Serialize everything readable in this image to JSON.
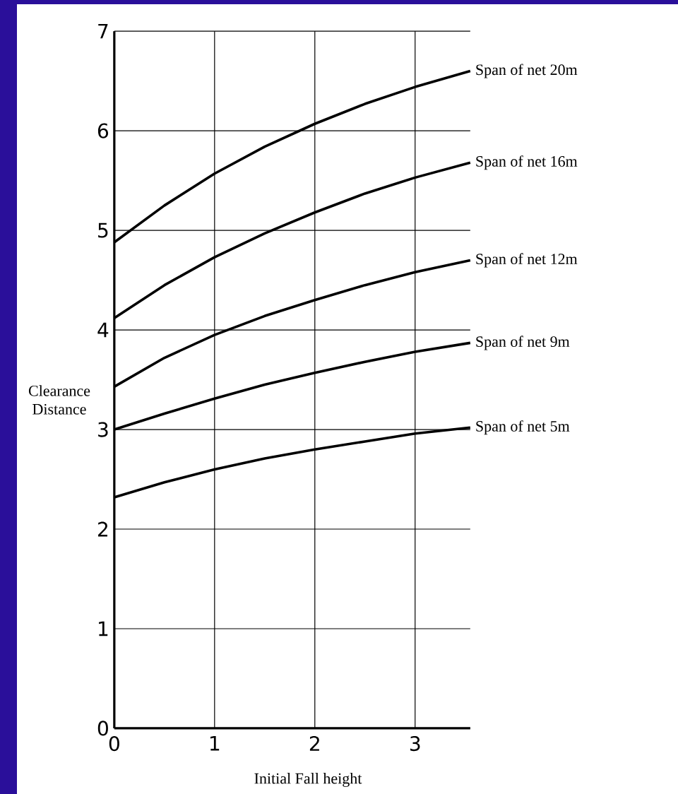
{
  "chart_data": {
    "type": "line",
    "xlabel": "Initial Fall height",
    "ylabel": "Clearance Distance",
    "x": [
      0,
      0.5,
      1,
      1.5,
      2,
      2.5,
      3,
      3.55
    ],
    "xlim": [
      0,
      3.55
    ],
    "ylim": [
      0,
      7
    ],
    "xticks": [
      0,
      1,
      2,
      3
    ],
    "yticks": [
      0,
      1,
      2,
      3,
      4,
      5,
      6,
      7
    ],
    "grid": true,
    "legend": false,
    "marker": "none",
    "line_style": "solid",
    "series": [
      {
        "name": "Span of net  20m",
        "color": "#000000",
        "values": [
          4.88,
          5.25,
          5.57,
          5.84,
          6.07,
          6.27,
          6.44,
          6.6
        ]
      },
      {
        "name": "Span of net  16m",
        "color": "#000000",
        "values": [
          4.12,
          4.45,
          4.73,
          4.97,
          5.18,
          5.37,
          5.53,
          5.68
        ]
      },
      {
        "name": "Span of net  12m",
        "color": "#000000",
        "values": [
          3.43,
          3.72,
          3.95,
          4.14,
          4.3,
          4.45,
          4.58,
          4.7
        ]
      },
      {
        "name": "Span of net  9m",
        "color": "#000000",
        "values": [
          3.0,
          3.16,
          3.31,
          3.45,
          3.57,
          3.68,
          3.78,
          3.87
        ]
      },
      {
        "name": "Span of net  5m",
        "color": "#000000",
        "values": [
          2.32,
          2.47,
          2.6,
          2.71,
          2.8,
          2.88,
          2.96,
          3.02
        ]
      }
    ]
  }
}
